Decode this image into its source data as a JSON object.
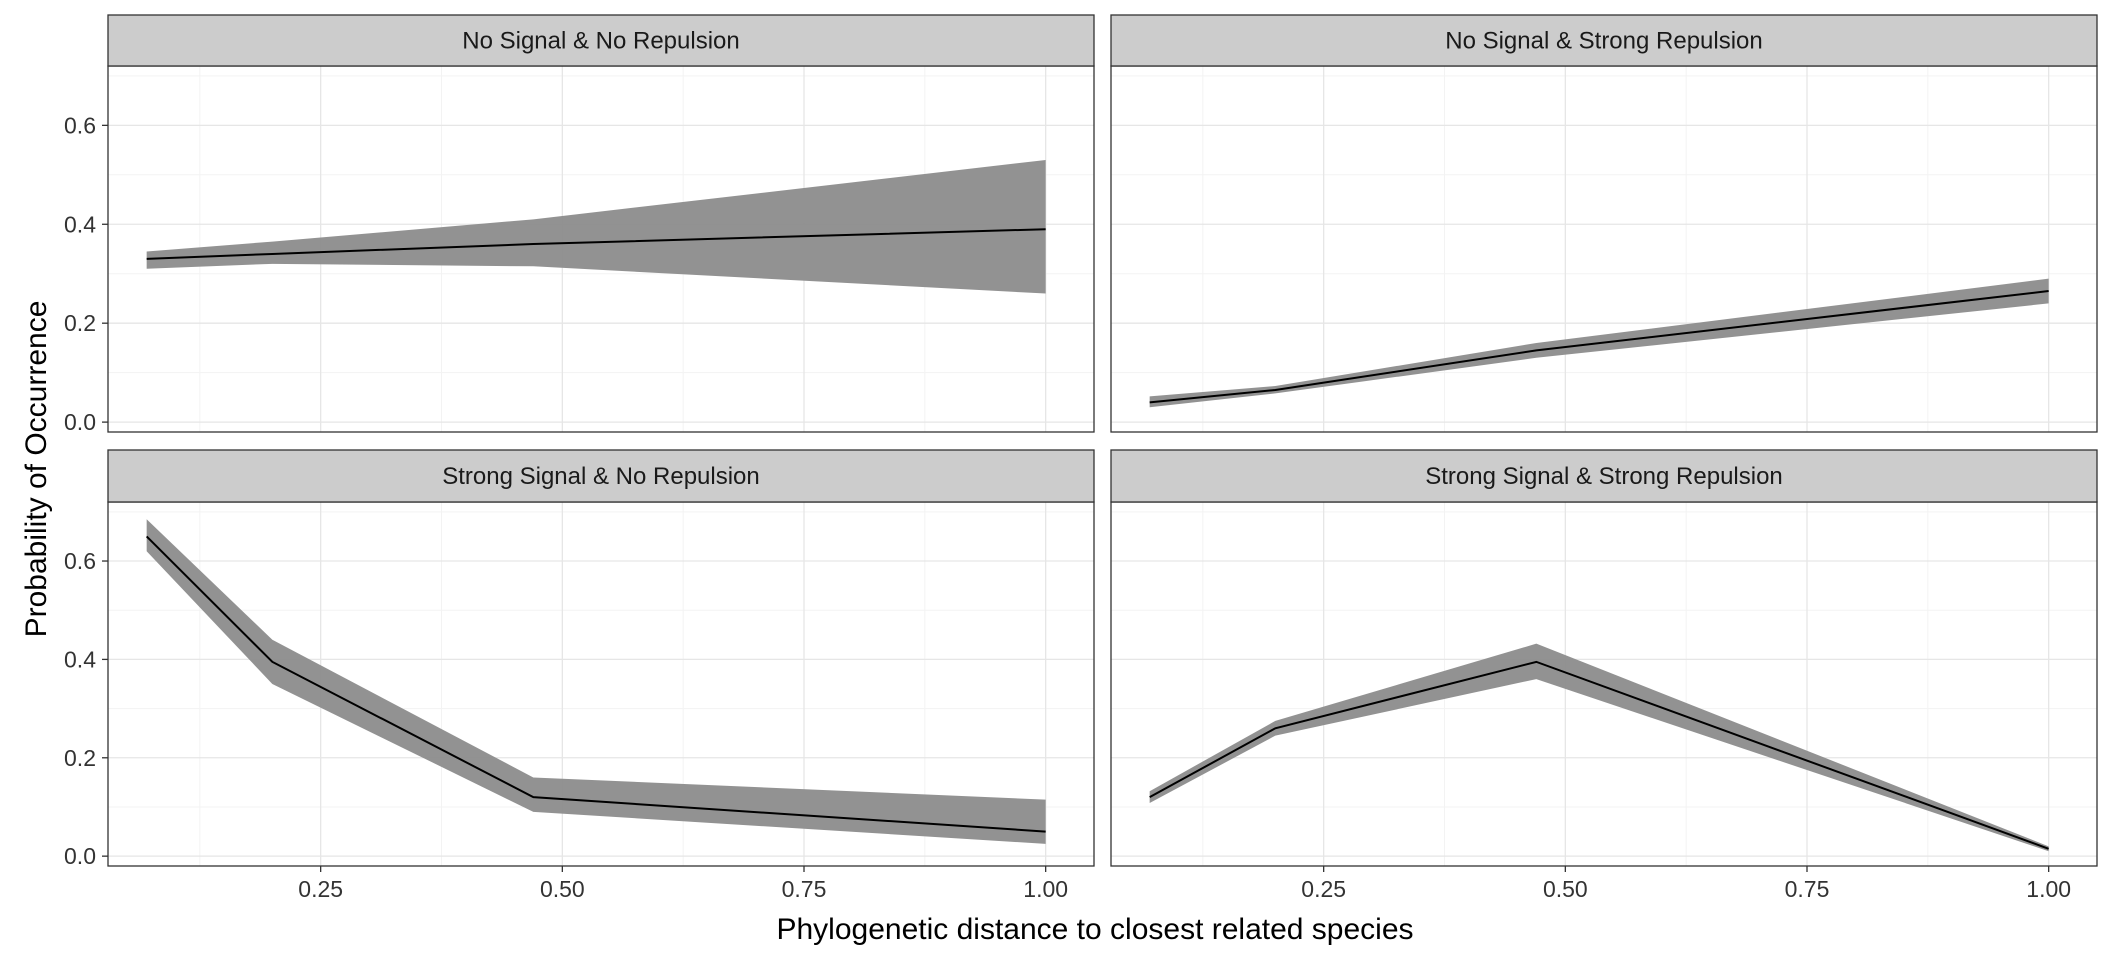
{
  "chart_data": {
    "type": "line",
    "xlabel": "Phylogenetic distance to closest related species",
    "ylabel": "Probability of Occurrence",
    "xlim": [
      0.03,
      1.05
    ],
    "ylim": [
      -0.02,
      0.72
    ],
    "x_ticks": [
      0.25,
      0.5,
      0.75,
      1.0
    ],
    "x_tick_labels": [
      "0.25",
      "0.50",
      "0.75",
      "1.00"
    ],
    "y_ticks": [
      0.0,
      0.2,
      0.4,
      0.6
    ],
    "y_tick_labels": [
      "0.0",
      "0.2",
      "0.4",
      "0.6"
    ],
    "grid": true,
    "line_color": "#000000",
    "ribbon_color": "#8c8c8c",
    "panels": [
      {
        "title": "No Signal & No Repulsion",
        "x": [
          0.07,
          0.2,
          0.47,
          1.0
        ],
        "y": [
          0.33,
          0.34,
          0.36,
          0.39
        ],
        "lower": [
          0.31,
          0.32,
          0.315,
          0.26
        ],
        "upper": [
          0.345,
          0.365,
          0.41,
          0.53
        ]
      },
      {
        "title": "No Signal & Strong Repulsion",
        "x": [
          0.07,
          0.2,
          0.47,
          1.0
        ],
        "y": [
          0.04,
          0.065,
          0.145,
          0.265
        ],
        "lower": [
          0.03,
          0.058,
          0.13,
          0.24
        ],
        "upper": [
          0.052,
          0.073,
          0.16,
          0.29
        ]
      },
      {
        "title": "Strong Signal & No Repulsion",
        "x": [
          0.07,
          0.2,
          0.47,
          1.0
        ],
        "y": [
          0.65,
          0.395,
          0.12,
          0.05
        ],
        "lower": [
          0.62,
          0.35,
          0.09,
          0.025
        ],
        "upper": [
          0.685,
          0.44,
          0.16,
          0.115
        ]
      },
      {
        "title": "Strong Signal & Strong Repulsion",
        "x": [
          0.07,
          0.2,
          0.47,
          1.0
        ],
        "y": [
          0.12,
          0.26,
          0.395,
          0.015
        ],
        "lower": [
          0.108,
          0.245,
          0.36,
          0.01
        ],
        "upper": [
          0.132,
          0.275,
          0.432,
          0.02
        ]
      }
    ]
  }
}
